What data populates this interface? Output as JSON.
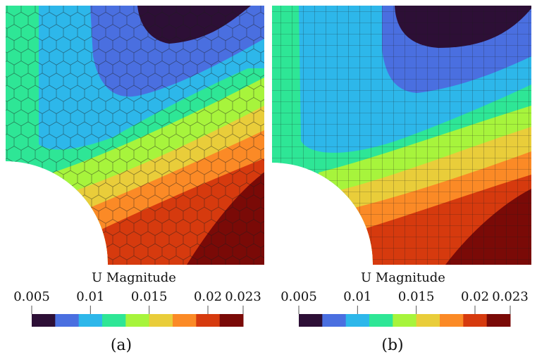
{
  "palette": [
    "#2d0f36",
    "#4a6fe0",
    "#2db7ea",
    "#2ee696",
    "#a7f43c",
    "#e9cd3a",
    "#fb8a26",
    "#d63a0e",
    "#7a0a07"
  ],
  "panels": [
    {
      "id": "a",
      "mesh": "polygonal",
      "caption": "(a)",
      "legend": {
        "title": "U Magnitude",
        "ticks": [
          {
            "label": "0.005",
            "value": 0.005
          },
          {
            "label": "0.01",
            "value": 0.01
          },
          {
            "label": "0.015",
            "value": 0.015
          },
          {
            "label": "0.02",
            "value": 0.02
          },
          {
            "label": "0.023",
            "value": 0.023
          }
        ],
        "min": 0.005,
        "max": 0.023
      }
    },
    {
      "id": "b",
      "mesh": "quadrilateral",
      "caption": "(b)",
      "legend": {
        "title": "U Magnitude",
        "ticks": [
          {
            "label": "0.005",
            "value": 0.005
          },
          {
            "label": "0.01",
            "value": 0.01
          },
          {
            "label": "0.015",
            "value": 0.015
          },
          {
            "label": "0.02",
            "value": 0.02
          },
          {
            "label": "0.023",
            "value": 0.023
          }
        ],
        "min": 0.005,
        "max": 0.023
      }
    }
  ]
}
